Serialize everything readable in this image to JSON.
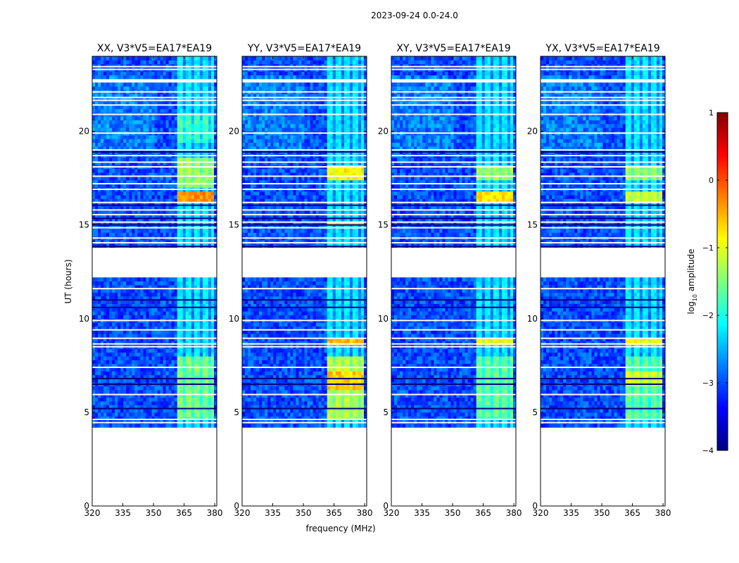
{
  "figure": {
    "suptitle": "2023-09-24 0.0-24.0",
    "ylabel": "UT (hours)",
    "xlabel": "frequency (MHz)",
    "colorbar_label": "log10 amplitude",
    "colorbar_label_base": "log",
    "colorbar_label_sub": "10",
    "colorbar_label_rest": " amplitude",
    "colorbar_ticks": [
      1,
      0,
      -1,
      -2,
      -3,
      -4
    ],
    "colorbar_tick_labels": [
      "1",
      "0",
      "−1",
      "−2",
      "−3",
      "−4"
    ],
    "colorbar_range": [
      -4,
      1
    ],
    "colormap": "jet",
    "colormap_stops": [
      "#00007f",
      "#0000ff",
      "#007fff",
      "#00ffff",
      "#7fff7f",
      "#ffff00",
      "#ff7f00",
      "#ff0000",
      "#7f0000"
    ]
  },
  "chart_data": {
    "type": "heatmap",
    "xlim": [
      320,
      381
    ],
    "ylim": [
      0,
      24
    ],
    "xticks": [
      320,
      335,
      350,
      365,
      380
    ],
    "xtick_labels": [
      "320",
      "335",
      "350",
      "365",
      "380"
    ],
    "yticks": [
      0,
      5,
      10,
      15,
      20
    ],
    "ytick_labels": [
      "0",
      "5",
      "10",
      "15",
      "20"
    ],
    "rfi_band_MHz": [
      362,
      379
    ],
    "background_log_amplitude": -3.0,
    "data_gaps_UT_hours": [
      [
        0.1,
        4.2
      ],
      [
        12.2,
        13.7
      ],
      [
        22.6,
        22.9
      ]
    ],
    "panels": [
      {
        "title": "XX, V3*V5=EA17*EA19",
        "polarization": "XX",
        "rfi_peaks": [
          {
            "ut": [
              4.6,
              8.0
            ],
            "log_amp": -1.5
          },
          {
            "ut": [
              16.2,
              16.9
            ],
            "log_amp": -0.3
          },
          {
            "ut": [
              17.0,
              18.5
            ],
            "log_amp": -1.3
          },
          {
            "ut": [
              19.5,
              21.0
            ],
            "log_amp": -1.8
          }
        ]
      },
      {
        "title": "YY, V3*V5=EA17*EA19",
        "polarization": "YY",
        "rfi_peaks": [
          {
            "ut": [
              4.6,
              8.0
            ],
            "log_amp": -1.2
          },
          {
            "ut": [
              6.3,
              7.2
            ],
            "log_amp": -0.6
          },
          {
            "ut": [
              8.7,
              9.0
            ],
            "log_amp": -0.5
          },
          {
            "ut": [
              17.5,
              18.1
            ],
            "log_amp": -0.8
          },
          {
            "ut": [
              15.0,
              15.2
            ],
            "log_amp": -0.9
          }
        ]
      },
      {
        "title": "XY, V3*V5=EA17*EA19",
        "polarization": "XY",
        "rfi_peaks": [
          {
            "ut": [
              4.6,
              8.0
            ],
            "log_amp": -1.6
          },
          {
            "ut": [
              8.7,
              9.0
            ],
            "log_amp": -0.9
          },
          {
            "ut": [
              16.2,
              16.9
            ],
            "log_amp": -0.7
          },
          {
            "ut": [
              17.5,
              18.1
            ],
            "log_amp": -1.3
          }
        ]
      },
      {
        "title": "YX, V3*V5=EA17*EA19",
        "polarization": "YX",
        "rfi_peaks": [
          {
            "ut": [
              4.6,
              8.0
            ],
            "log_amp": -1.6
          },
          {
            "ut": [
              6.5,
              7.2
            ],
            "log_amp": -1.0
          },
          {
            "ut": [
              8.7,
              9.0
            ],
            "log_amp": -0.9
          },
          {
            "ut": [
              16.2,
              16.9
            ],
            "log_amp": -1.1
          },
          {
            "ut": [
              17.5,
              18.1
            ],
            "log_amp": -1.3
          }
        ]
      }
    ]
  }
}
